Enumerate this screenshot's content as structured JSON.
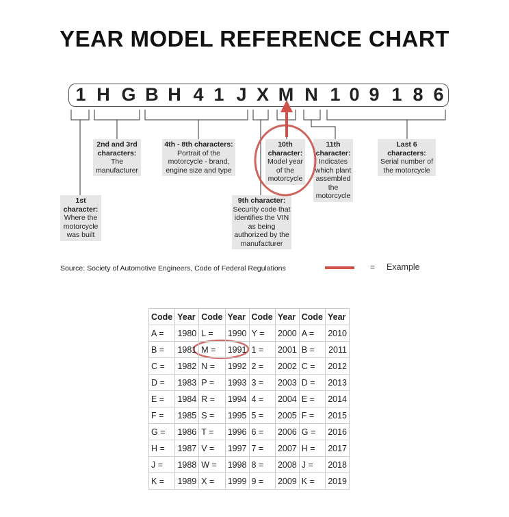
{
  "title": "YEAR MODEL REFERENCE CHART",
  "vin": [
    "1",
    "H",
    "G",
    "B",
    "H",
    "4",
    "1",
    "J",
    "X",
    "M",
    "N",
    "1",
    "0",
    "9",
    "1",
    "8",
    "6"
  ],
  "labels": {
    "first": {
      "head": "1st character:",
      "body": "Where the motorcycle was built"
    },
    "second_third": {
      "head": "2nd and 3rd characters:",
      "body": "The manufacturer"
    },
    "fourth_eighth": {
      "head": "4th - 8th characters:",
      "body": "Portrait of the motorcycle - brand, engine size and type"
    },
    "ninth": {
      "head": "9th character:",
      "body": "Security code that identifies the VIN as being authorized by the manufacturer"
    },
    "tenth": {
      "head": "10th character:",
      "body": "Model year of the motorcycle"
    },
    "eleventh": {
      "head": "11th character:",
      "body": "Indicates which plant assembled the motorcycle"
    },
    "last6": {
      "head": "Last 6 characters:",
      "body": "Serial number of the motorcycle"
    }
  },
  "source": "Source:  Society of Automotive Engineers, Code of Federal Regulations",
  "legend": {
    "equals": "=",
    "example": "Example",
    "color": "#d0504a"
  },
  "table": {
    "headers": [
      "Code",
      "Year",
      "Code",
      "Year",
      "Code",
      "Year",
      "Code",
      "Year"
    ],
    "rows": [
      [
        "A =",
        "1980",
        "L =",
        "1990",
        "Y =",
        "2000",
        "A =",
        "2010"
      ],
      [
        "B =",
        "1981",
        "M =",
        "1991",
        "1 =",
        "2001",
        "B =",
        "2011"
      ],
      [
        "C =",
        "1982",
        "N =",
        "1992",
        "2 =",
        "2002",
        "C =",
        "2012"
      ],
      [
        "D =",
        "1983",
        "P =",
        "1993",
        "3 =",
        "2003",
        "D =",
        "2013"
      ],
      [
        "E =",
        "1984",
        "R =",
        "1994",
        "4 =",
        "2004",
        "E =",
        "2014"
      ],
      [
        "F =",
        "1985",
        "S =",
        "1995",
        "5 =",
        "2005",
        "F =",
        "2015"
      ],
      [
        "G =",
        "1986",
        "T =",
        "1996",
        "6 =",
        "2006",
        "G =",
        "2016"
      ],
      [
        "H =",
        "1987",
        "V =",
        "1997",
        "7 =",
        "2007",
        "H =",
        "2017"
      ],
      [
        "J =",
        "1988",
        "W =",
        "1998",
        "8 =",
        "2008",
        "J =",
        "2018"
      ],
      [
        "K =",
        "1989",
        "X =",
        "1999",
        "9 =",
        "2009",
        "K =",
        "2019"
      ]
    ]
  }
}
